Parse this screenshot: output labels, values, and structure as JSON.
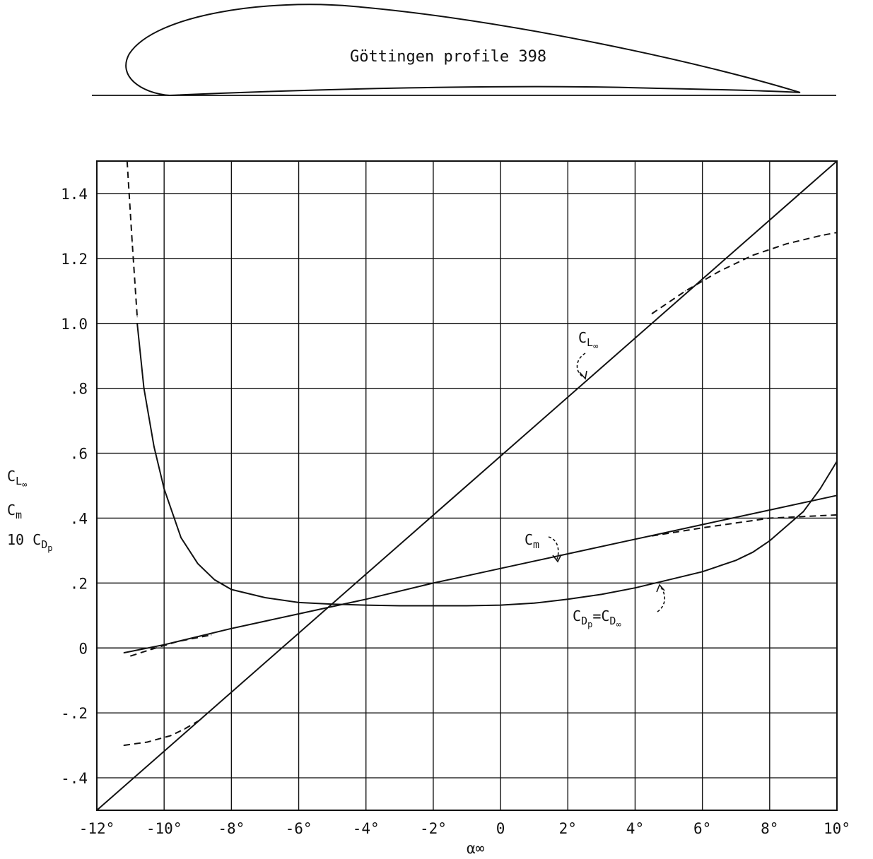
{
  "profile": {
    "title": "Göttingen profile 398"
  },
  "ylabels": {
    "cl_base": "C",
    "cl_sub": "L",
    "cl_subsub": "∞",
    "cm_base": "C",
    "cm_sub": "m",
    "cd_prefix": "10",
    "cd_base": "C",
    "cd_sub": "D",
    "cd_subsub": "p"
  },
  "annotations": {
    "cl": {
      "base": "C",
      "sub": "L",
      "subsub": "∞"
    },
    "cm": {
      "base": "C",
      "sub": "m"
    },
    "cd": {
      "base": "C",
      "sub": "D",
      "subsub": "p",
      "eq": "=C",
      "sub2": "D",
      "subsub2": "∞"
    }
  },
  "chart_data": {
    "type": "line",
    "title": "",
    "xlabel": "α∞",
    "ylabel": "",
    "xlim": [
      -12,
      10
    ],
    "ylim": [
      -0.5,
      1.5
    ],
    "grid": true,
    "x_ticks": [
      -12,
      -10,
      -8,
      -6,
      -4,
      -2,
      0,
      2,
      4,
      6,
      8,
      10
    ],
    "x_tick_labels": [
      "-12°",
      "-10°",
      "-8°",
      "-6°",
      "-4°",
      "-2°",
      "0",
      "2°",
      "4°",
      "6°",
      "8°",
      "10°"
    ],
    "y_ticks": [
      -0.4,
      -0.2,
      0,
      0.2,
      0.4,
      0.6,
      0.8,
      1.0,
      1.2,
      1.4
    ],
    "y_tick_labels": [
      "-.4",
      "-.2",
      "0",
      ".2",
      ".4",
      ".6",
      ".8",
      "1.0",
      "1.2",
      "1.4"
    ],
    "series": [
      {
        "style": "solid",
        "x": [
          -12,
          10
        ],
        "y": [
          -0.5,
          1.5
        ]
      },
      {
        "style": "dashed",
        "x": [
          4.5,
          5.5,
          6.5,
          7.5,
          8.5,
          9.5,
          10
        ],
        "y": [
          1.03,
          1.1,
          1.16,
          1.21,
          1.245,
          1.27,
          1.28
        ]
      },
      {
        "style": "solid",
        "x": [
          -11.2,
          -10,
          -8,
          -6,
          -4,
          -2,
          0,
          2,
          4,
          6,
          8,
          10
        ],
        "y": [
          -0.015,
          0.01,
          0.06,
          0.105,
          0.15,
          0.2,
          0.245,
          0.29,
          0.335,
          0.38,
          0.425,
          0.47
        ]
      },
      {
        "style": "dashed",
        "x": [
          -11,
          -10.4,
          -9.6,
          -8.6,
          4.5,
          6,
          7,
          8,
          9,
          10
        ],
        "y": [
          -0.025,
          -0.005,
          0.02,
          0.04,
          0.345,
          0.37,
          0.385,
          0.4,
          0.405,
          0.41
        ]
      },
      {
        "style": "solid",
        "x": [
          -10.8,
          -10.6,
          -10.3,
          -10,
          -9.5,
          -9,
          -8.5,
          -8,
          -7,
          -6,
          -5,
          -4,
          -3,
          -2,
          -1,
          0,
          1,
          2,
          3,
          4,
          5,
          6,
          7,
          7.5,
          8,
          8.5,
          9,
          9.5,
          10
        ],
        "y": [
          1.0,
          0.8,
          0.62,
          0.49,
          0.34,
          0.26,
          0.21,
          0.18,
          0.155,
          0.14,
          0.135,
          0.132,
          0.13,
          0.13,
          0.13,
          0.132,
          0.138,
          0.15,
          0.165,
          0.185,
          0.21,
          0.235,
          0.27,
          0.295,
          0.33,
          0.375,
          0.42,
          0.49,
          0.575
        ]
      },
      {
        "style": "dashed",
        "x": [
          -11.1,
          -10.95,
          -10.8
        ],
        "y": [
          1.5,
          1.25,
          1.02
        ]
      },
      {
        "style": "dashed",
        "x": [
          -11.2,
          -10.5,
          -9.8,
          -9.4,
          -8.9
        ],
        "y": [
          -0.3,
          -0.29,
          -0.27,
          -0.25,
          -0.22
        ]
      }
    ]
  }
}
